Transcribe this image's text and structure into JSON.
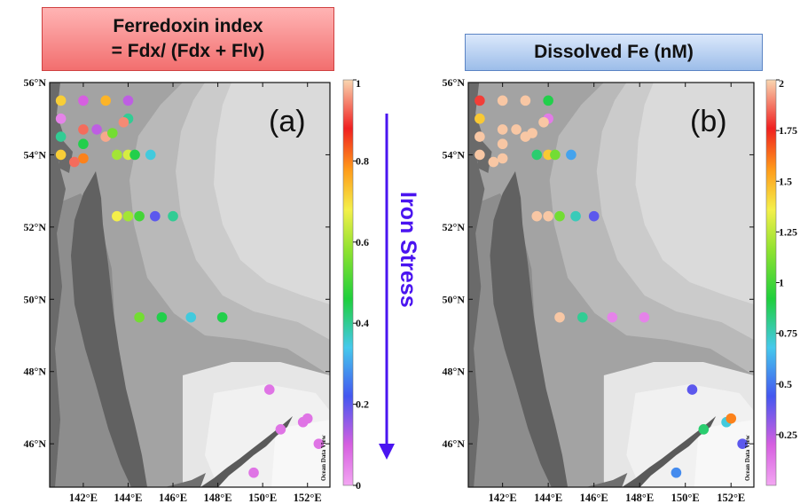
{
  "panel_a": {
    "title_line1": "Ferredoxin index",
    "title_line2": "= Fdx/ (Fdx + Flv)",
    "tag": "(a)",
    "colorbar": {
      "min": 0,
      "max": 1,
      "ticks": [
        "1",
        "0.8",
        "0.6",
        "0.4",
        "0.2",
        "0"
      ]
    },
    "stations": [
      {
        "lon": 141.0,
        "lat": 55.5,
        "v": 0.72
      },
      {
        "lon": 142.0,
        "lat": 55.5,
        "v": 0.1
      },
      {
        "lon": 143.0,
        "lat": 55.5,
        "v": 0.75
      },
      {
        "lon": 144.0,
        "lat": 55.5,
        "v": 0.12
      },
      {
        "lon": 141.0,
        "lat": 55.0,
        "v": 0.05
      },
      {
        "lon": 144.0,
        "lat": 55.0,
        "v": 0.4
      },
      {
        "lon": 141.0,
        "lat": 54.5,
        "v": 0.4
      },
      {
        "lon": 142.0,
        "lat": 54.7,
        "v": 0.93
      },
      {
        "lon": 142.6,
        "lat": 54.7,
        "v": 0.12
      },
      {
        "lon": 143.0,
        "lat": 54.5,
        "v": 0.97
      },
      {
        "lon": 143.3,
        "lat": 54.6,
        "v": 0.55
      },
      {
        "lon": 143.8,
        "lat": 54.9,
        "v": 0.95
      },
      {
        "lon": 142.0,
        "lat": 54.3,
        "v": 0.45
      },
      {
        "lon": 141.0,
        "lat": 54.0,
        "v": 0.72
      },
      {
        "lon": 142.0,
        "lat": 53.9,
        "v": 0.8
      },
      {
        "lon": 141.6,
        "lat": 53.8,
        "v": 0.93
      },
      {
        "lon": 143.5,
        "lat": 54.0,
        "v": 0.6
      },
      {
        "lon": 144.0,
        "lat": 54.0,
        "v": 0.65
      },
      {
        "lon": 144.3,
        "lat": 54.0,
        "v": 0.45
      },
      {
        "lon": 145.0,
        "lat": 54.0,
        "v": 0.35
      },
      {
        "lon": 143.5,
        "lat": 52.3,
        "v": 0.68
      },
      {
        "lon": 144.0,
        "lat": 52.3,
        "v": 0.6
      },
      {
        "lon": 144.5,
        "lat": 52.3,
        "v": 0.5
      },
      {
        "lon": 145.2,
        "lat": 52.3,
        "v": 0.2
      },
      {
        "lon": 146.0,
        "lat": 52.3,
        "v": 0.4
      },
      {
        "lon": 144.5,
        "lat": 49.5,
        "v": 0.55
      },
      {
        "lon": 145.5,
        "lat": 49.5,
        "v": 0.45
      },
      {
        "lon": 146.8,
        "lat": 49.5,
        "v": 0.35
      },
      {
        "lon": 148.2,
        "lat": 49.5,
        "v": 0.45
      },
      {
        "lon": 150.3,
        "lat": 47.5,
        "v": 0.07
      },
      {
        "lon": 150.8,
        "lat": 46.4,
        "v": 0.07
      },
      {
        "lon": 151.8,
        "lat": 46.6,
        "v": 0.07
      },
      {
        "lon": 152.0,
        "lat": 46.7,
        "v": 0.07
      },
      {
        "lon": 152.5,
        "lat": 46.0,
        "v": 0.07
      },
      {
        "lon": 149.6,
        "lat": 45.2,
        "v": 0.07
      }
    ]
  },
  "panel_b": {
    "title": "Dissolved Fe (nM)",
    "tag": "(b)",
    "colorbar": {
      "min": 0,
      "max": 2,
      "ticks": [
        "2",
        "1.75",
        "1.5",
        "1.25",
        "1",
        "0.75",
        "0.5",
        "0.25"
      ]
    },
    "stations": [
      {
        "lon": 141.0,
        "lat": 55.5,
        "v": 1.8
      },
      {
        "lon": 142.0,
        "lat": 55.5,
        "v": 1.98
      },
      {
        "lon": 143.0,
        "lat": 55.5,
        "v": 1.98
      },
      {
        "lon": 144.0,
        "lat": 55.5,
        "v": 0.9
      },
      {
        "lon": 141.0,
        "lat": 55.0,
        "v": 1.45
      },
      {
        "lon": 144.0,
        "lat": 55.0,
        "v": 0.12
      },
      {
        "lon": 141.0,
        "lat": 54.5,
        "v": 1.98
      },
      {
        "lon": 142.0,
        "lat": 54.7,
        "v": 1.98
      },
      {
        "lon": 142.6,
        "lat": 54.7,
        "v": 1.98
      },
      {
        "lon": 143.0,
        "lat": 54.5,
        "v": 1.98
      },
      {
        "lon": 143.3,
        "lat": 54.6,
        "v": 1.98
      },
      {
        "lon": 143.8,
        "lat": 54.9,
        "v": 1.98
      },
      {
        "lon": 142.0,
        "lat": 54.3,
        "v": 1.98
      },
      {
        "lon": 141.0,
        "lat": 54.0,
        "v": 1.98
      },
      {
        "lon": 142.0,
        "lat": 53.9,
        "v": 1.98
      },
      {
        "lon": 141.6,
        "lat": 53.8,
        "v": 1.98
      },
      {
        "lon": 143.5,
        "lat": 54.0,
        "v": 0.85
      },
      {
        "lon": 144.0,
        "lat": 54.0,
        "v": 1.45
      },
      {
        "lon": 144.3,
        "lat": 54.0,
        "v": 1.1
      },
      {
        "lon": 145.0,
        "lat": 54.0,
        "v": 0.6
      },
      {
        "lon": 143.5,
        "lat": 52.3,
        "v": 1.98
      },
      {
        "lon": 144.0,
        "lat": 52.3,
        "v": 1.98
      },
      {
        "lon": 144.5,
        "lat": 52.3,
        "v": 1.1
      },
      {
        "lon": 145.2,
        "lat": 52.3,
        "v": 0.75
      },
      {
        "lon": 146.0,
        "lat": 52.3,
        "v": 0.4
      },
      {
        "lon": 144.5,
        "lat": 49.5,
        "v": 1.98
      },
      {
        "lon": 145.5,
        "lat": 49.5,
        "v": 0.8
      },
      {
        "lon": 146.8,
        "lat": 49.5,
        "v": 0.1
      },
      {
        "lon": 148.2,
        "lat": 49.5,
        "v": 0.1
      },
      {
        "lon": 150.3,
        "lat": 47.5,
        "v": 0.4
      },
      {
        "lon": 150.8,
        "lat": 46.4,
        "v": 0.85
      },
      {
        "lon": 151.8,
        "lat": 46.6,
        "v": 0.7
      },
      {
        "lon": 152.0,
        "lat": 46.7,
        "v": 1.6
      },
      {
        "lon": 152.5,
        "lat": 46.0,
        "v": 0.4
      },
      {
        "lon": 149.6,
        "lat": 45.2,
        "v": 0.55
      }
    ]
  },
  "axes": {
    "lat_labels": [
      "56°N",
      "54°N",
      "52°N",
      "50°N",
      "48°N",
      "46°N"
    ],
    "lat_values": [
      56,
      54,
      52,
      50,
      48,
      46
    ],
    "lon_labels": [
      "142°E",
      "144°E",
      "146°E",
      "148°E",
      "150°E",
      "152°E"
    ],
    "lon_values": [
      142,
      144,
      146,
      148,
      150,
      152
    ],
    "lon_range": [
      140.5,
      153.0
    ],
    "lat_range": [
      44.8,
      56.0
    ]
  },
  "arrow_label": "Iron Stress",
  "credit": "Ocean Data View",
  "colors": {
    "arrow": "#4a14f0",
    "ocean_dark": "#9a9a9a",
    "ocean_light": "#f2f2f2",
    "land": "#5a5a5a"
  }
}
